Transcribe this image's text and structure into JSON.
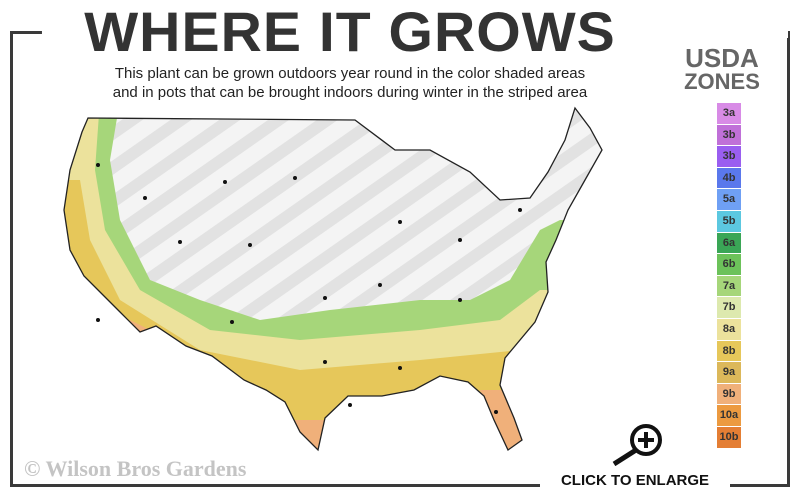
{
  "title": "WHERE IT GROWS",
  "subtitle_line1": "This plant can be grown outdoors year round in the color shaded areas",
  "subtitle_line2": "and in pots that can be brought indoors during winter in the striped area",
  "legend": {
    "title_line1": "USDA",
    "title_line2": "ZONES",
    "zones": [
      {
        "label": "3a",
        "color": "#d88be6"
      },
      {
        "label": "3b",
        "color": "#c070d8"
      },
      {
        "label": "3b",
        "color": "#9a5ef0"
      },
      {
        "label": "4b",
        "color": "#5a78ec"
      },
      {
        "label": "5a",
        "color": "#6fa0f4"
      },
      {
        "label": "5b",
        "color": "#5cc8e0"
      },
      {
        "label": "6a",
        "color": "#3aa656"
      },
      {
        "label": "6b",
        "color": "#6cc25a"
      },
      {
        "label": "7a",
        "color": "#a6d67a"
      },
      {
        "label": "7b",
        "color": "#dde9ae"
      },
      {
        "label": "8a",
        "color": "#ece29c"
      },
      {
        "label": "8b",
        "color": "#e6c75a"
      },
      {
        "label": "9a",
        "color": "#dcb85a"
      },
      {
        "label": "9b",
        "color": "#f0b07a"
      },
      {
        "label": "10a",
        "color": "#ec9a40"
      },
      {
        "label": "10b",
        "color": "#e47e34"
      }
    ]
  },
  "watermark": "© Wilson Bros Gardens",
  "enlarge_label": "CLICK TO ENLARGE",
  "icons": {
    "enlarge": "magnifier-plus-icon"
  }
}
